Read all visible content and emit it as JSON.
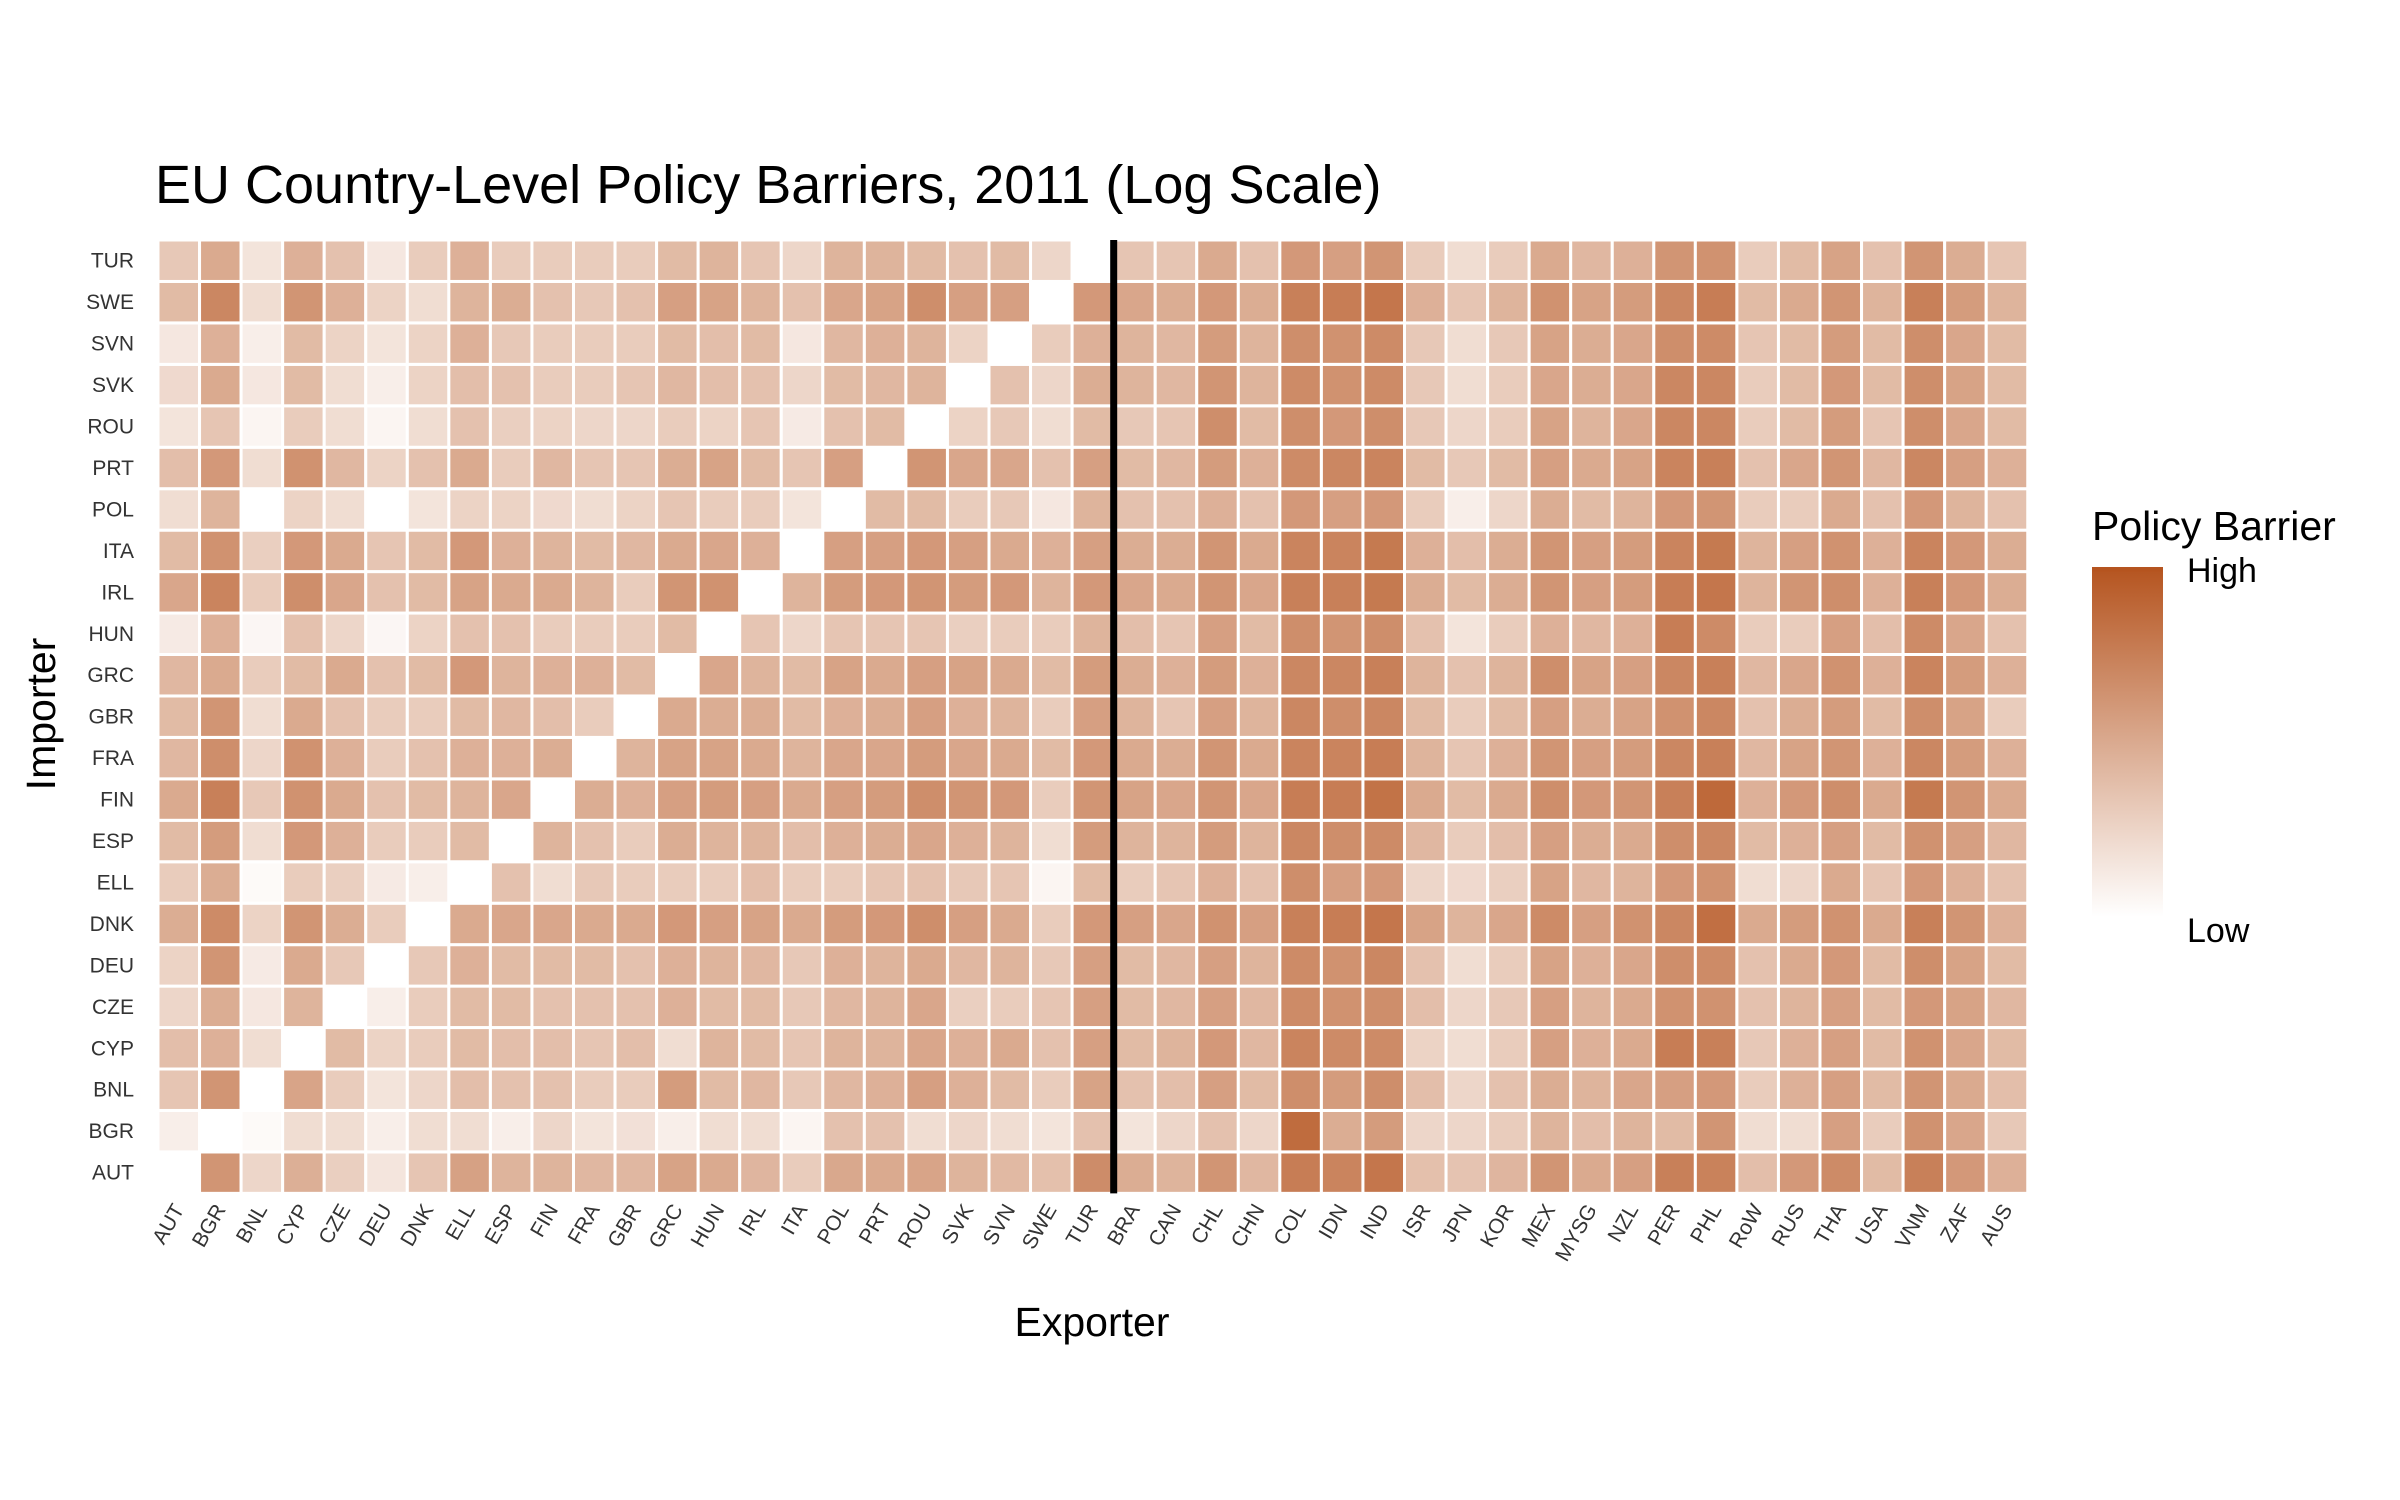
{
  "chart_data": {
    "type": "heatmap",
    "title": "EU Country-Level Policy Barriers, 2011 (Log Scale)",
    "xlabel": "Exporter",
    "ylabel": "Importer",
    "x_categories": [
      "AUT",
      "BGR",
      "BNL",
      "CYP",
      "CZE",
      "DEU",
      "DNK",
      "ELL",
      "ESP",
      "FIN",
      "FRA",
      "GBR",
      "GRC",
      "HUN",
      "IRL",
      "ITA",
      "POL",
      "PRT",
      "ROU",
      "SVK",
      "SVN",
      "SWE",
      "TUR",
      "BRA",
      "CAN",
      "CHL",
      "CHN",
      "COL",
      "IDN",
      "IND",
      "ISR",
      "JPN",
      "KOR",
      "MEX",
      "MYSG",
      "NZL",
      "PER",
      "PHL",
      "RoW",
      "RUS",
      "THA",
      "USA",
      "VNM",
      "ZAF",
      "AUS"
    ],
    "y_categories": [
      "AUT",
      "BGR",
      "BNL",
      "CYP",
      "CZE",
      "DEU",
      "DNK",
      "ELL",
      "ESP",
      "FIN",
      "FRA",
      "GBR",
      "GRC",
      "HUN",
      "IRL",
      "ITA",
      "POL",
      "PRT",
      "ROU",
      "SVK",
      "SVN",
      "SWE",
      "TUR"
    ],
    "value_scale": "relative 0 (Low) to 1 (High), log scale",
    "values": [
      [
        null,
        0.62,
        0.24,
        0.47,
        0.28,
        0.15,
        0.34,
        0.55,
        0.44,
        0.44,
        0.42,
        0.42,
        0.54,
        0.5,
        0.43,
        0.3,
        0.51,
        0.5,
        0.53,
        0.44,
        0.41,
        0.37,
        0.67,
        0.48,
        0.44,
        0.62,
        0.42,
        0.76,
        0.72,
        0.8,
        0.37,
        0.35,
        0.43,
        0.62,
        0.5,
        0.56,
        0.74,
        0.73,
        0.38,
        0.6,
        0.68,
        0.4,
        0.74,
        0.6,
        0.46
      ],
      [
        0.1,
        null,
        0.03,
        0.2,
        0.2,
        0.1,
        0.2,
        0.2,
        0.1,
        0.24,
        0.16,
        0.18,
        0.1,
        0.2,
        0.2,
        0.06,
        0.36,
        0.36,
        0.2,
        0.24,
        0.2,
        0.16,
        0.36,
        0.16,
        0.24,
        0.36,
        0.24,
        0.86,
        0.48,
        0.58,
        0.24,
        0.24,
        0.3,
        0.44,
        0.38,
        0.44,
        0.4,
        0.62,
        0.2,
        0.2,
        0.56,
        0.3,
        0.64,
        0.52,
        0.32
      ],
      [
        0.34,
        0.62,
        null,
        0.53,
        0.3,
        0.16,
        0.24,
        0.38,
        0.36,
        0.36,
        0.3,
        0.3,
        0.58,
        0.4,
        0.42,
        0.32,
        0.42,
        0.46,
        0.56,
        0.46,
        0.4,
        0.3,
        0.54,
        0.36,
        0.38,
        0.56,
        0.4,
        0.66,
        0.58,
        0.66,
        0.38,
        0.24,
        0.36,
        0.48,
        0.44,
        0.52,
        0.56,
        0.6,
        0.3,
        0.46,
        0.56,
        0.4,
        0.62,
        0.5,
        0.38
      ],
      [
        0.38,
        0.46,
        0.2,
        null,
        0.4,
        0.26,
        0.3,
        0.4,
        0.38,
        0.38,
        0.34,
        0.38,
        0.2,
        0.44,
        0.4,
        0.34,
        0.44,
        0.44,
        0.52,
        0.46,
        0.5,
        0.36,
        0.56,
        0.4,
        0.44,
        0.6,
        0.42,
        0.72,
        0.68,
        0.68,
        0.26,
        0.2,
        0.3,
        0.56,
        0.46,
        0.5,
        0.76,
        0.74,
        0.32,
        0.46,
        0.56,
        0.4,
        0.64,
        0.52,
        0.4
      ],
      [
        0.24,
        0.48,
        0.14,
        0.44,
        null,
        0.1,
        0.3,
        0.4,
        0.4,
        0.36,
        0.36,
        0.36,
        0.46,
        0.4,
        0.4,
        0.32,
        0.42,
        0.44,
        0.52,
        0.28,
        0.3,
        0.34,
        0.56,
        0.4,
        0.42,
        0.56,
        0.42,
        0.68,
        0.64,
        0.66,
        0.38,
        0.24,
        0.32,
        0.56,
        0.44,
        0.5,
        0.64,
        0.64,
        0.36,
        0.44,
        0.56,
        0.4,
        0.6,
        0.54,
        0.42
      ],
      [
        0.26,
        0.62,
        0.12,
        0.5,
        0.32,
        null,
        0.32,
        0.46,
        0.4,
        0.4,
        0.4,
        0.36,
        0.46,
        0.44,
        0.42,
        0.32,
        0.46,
        0.44,
        0.5,
        0.42,
        0.44,
        0.32,
        0.56,
        0.4,
        0.42,
        0.56,
        0.44,
        0.68,
        0.64,
        0.7,
        0.36,
        0.2,
        0.3,
        0.54,
        0.46,
        0.52,
        0.66,
        0.68,
        0.36,
        0.5,
        0.6,
        0.4,
        0.66,
        0.54,
        0.4
      ],
      [
        0.48,
        0.68,
        0.26,
        0.62,
        0.48,
        0.3,
        null,
        0.5,
        0.52,
        0.52,
        0.5,
        0.5,
        0.6,
        0.56,
        0.54,
        0.5,
        0.58,
        0.6,
        0.66,
        0.56,
        0.5,
        0.3,
        0.6,
        0.56,
        0.52,
        0.64,
        0.56,
        0.74,
        0.76,
        0.8,
        0.54,
        0.44,
        0.52,
        0.68,
        0.56,
        0.64,
        0.7,
        0.84,
        0.5,
        0.58,
        0.64,
        0.5,
        0.74,
        0.62,
        0.46
      ],
      [
        0.3,
        0.48,
        0.03,
        0.3,
        0.28,
        0.12,
        0.1,
        null,
        0.36,
        0.2,
        0.32,
        0.3,
        0.3,
        0.3,
        0.38,
        0.3,
        0.3,
        0.34,
        0.36,
        0.32,
        0.34,
        0.06,
        0.4,
        0.3,
        0.34,
        0.46,
        0.36,
        0.66,
        0.56,
        0.6,
        0.24,
        0.22,
        0.28,
        0.54,
        0.42,
        0.44,
        0.6,
        0.64,
        0.2,
        0.24,
        0.5,
        0.34,
        0.6,
        0.46,
        0.36
      ],
      [
        0.4,
        0.58,
        0.2,
        0.6,
        0.46,
        0.3,
        0.3,
        0.4,
        null,
        0.44,
        0.36,
        0.3,
        0.48,
        0.44,
        0.44,
        0.38,
        0.46,
        0.48,
        0.52,
        0.46,
        0.44,
        0.2,
        0.58,
        0.44,
        0.44,
        0.58,
        0.44,
        0.7,
        0.66,
        0.68,
        0.42,
        0.3,
        0.38,
        0.56,
        0.48,
        0.5,
        0.66,
        0.7,
        0.4,
        0.46,
        0.56,
        0.4,
        0.64,
        0.56,
        0.42
      ],
      [
        0.5,
        0.74,
        0.32,
        0.64,
        0.5,
        0.36,
        0.4,
        0.44,
        0.52,
        null,
        0.48,
        0.46,
        0.56,
        0.58,
        0.56,
        0.5,
        0.56,
        0.58,
        0.66,
        0.62,
        0.6,
        0.3,
        0.62,
        0.54,
        0.52,
        0.62,
        0.52,
        0.76,
        0.76,
        0.82,
        0.5,
        0.4,
        0.5,
        0.66,
        0.6,
        0.62,
        0.74,
        0.88,
        0.46,
        0.6,
        0.66,
        0.5,
        0.78,
        0.62,
        0.5
      ],
      [
        0.42,
        0.66,
        0.24,
        0.64,
        0.46,
        0.3,
        0.36,
        0.46,
        0.46,
        0.48,
        null,
        0.44,
        0.54,
        0.54,
        0.5,
        0.44,
        0.52,
        0.52,
        0.58,
        0.52,
        0.5,
        0.4,
        0.6,
        0.5,
        0.48,
        0.62,
        0.5,
        0.72,
        0.72,
        0.76,
        0.44,
        0.34,
        0.46,
        0.62,
        0.56,
        0.58,
        0.7,
        0.74,
        0.42,
        0.54,
        0.62,
        0.46,
        0.7,
        0.58,
        0.46
      ],
      [
        0.4,
        0.62,
        0.2,
        0.5,
        0.36,
        0.3,
        0.3,
        0.4,
        0.42,
        0.38,
        0.3,
        null,
        0.5,
        0.48,
        0.48,
        0.4,
        0.46,
        0.48,
        0.56,
        0.46,
        0.44,
        0.3,
        0.56,
        0.44,
        0.34,
        0.56,
        0.44,
        0.7,
        0.66,
        0.7,
        0.4,
        0.3,
        0.4,
        0.56,
        0.48,
        0.54,
        0.64,
        0.7,
        0.36,
        0.48,
        0.58,
        0.4,
        0.66,
        0.54,
        0.3
      ],
      [
        0.42,
        0.5,
        0.3,
        0.4,
        0.5,
        0.36,
        0.4,
        0.6,
        0.44,
        0.46,
        0.46,
        0.4,
        null,
        0.52,
        0.44,
        0.4,
        0.54,
        0.5,
        0.56,
        0.54,
        0.5,
        0.4,
        0.58,
        0.48,
        0.46,
        0.58,
        0.46,
        0.7,
        0.7,
        0.74,
        0.44,
        0.36,
        0.44,
        0.66,
        0.54,
        0.56,
        0.7,
        0.74,
        0.42,
        0.52,
        0.64,
        0.46,
        0.72,
        0.58,
        0.46
      ],
      [
        0.12,
        0.46,
        0.05,
        0.36,
        0.24,
        0.05,
        0.26,
        0.36,
        0.36,
        0.3,
        0.3,
        0.3,
        0.4,
        null,
        0.34,
        0.24,
        0.34,
        0.34,
        0.34,
        0.28,
        0.3,
        0.3,
        0.44,
        0.38,
        0.34,
        0.56,
        0.4,
        0.66,
        0.62,
        0.66,
        0.36,
        0.16,
        0.3,
        0.46,
        0.42,
        0.46,
        0.76,
        0.68,
        0.3,
        0.3,
        0.56,
        0.38,
        0.68,
        0.52,
        0.36
      ],
      [
        0.52,
        0.72,
        0.3,
        0.66,
        0.52,
        0.36,
        0.4,
        0.54,
        0.5,
        0.5,
        0.44,
        0.3,
        0.62,
        0.64,
        null,
        0.44,
        0.58,
        0.6,
        0.62,
        0.58,
        0.6,
        0.44,
        0.6,
        0.52,
        0.5,
        0.62,
        0.52,
        0.74,
        0.74,
        0.78,
        0.48,
        0.4,
        0.48,
        0.62,
        0.56,
        0.58,
        0.76,
        0.8,
        0.44,
        0.62,
        0.66,
        0.46,
        0.74,
        0.6,
        0.48
      ],
      [
        0.4,
        0.64,
        0.28,
        0.6,
        0.5,
        0.34,
        0.4,
        0.6,
        0.46,
        0.44,
        0.4,
        0.42,
        0.5,
        0.52,
        0.46,
        null,
        0.56,
        0.56,
        0.6,
        0.56,
        0.5,
        0.46,
        0.56,
        0.48,
        0.48,
        0.62,
        0.5,
        0.72,
        0.72,
        0.78,
        0.46,
        0.38,
        0.48,
        0.62,
        0.56,
        0.58,
        0.72,
        0.78,
        0.44,
        0.56,
        0.64,
        0.46,
        0.72,
        0.6,
        0.48
      ],
      [
        0.2,
        0.44,
        null,
        0.26,
        0.2,
        null,
        0.16,
        0.26,
        0.26,
        0.22,
        0.2,
        0.26,
        0.34,
        0.3,
        0.3,
        0.16,
        null,
        0.4,
        0.4,
        0.3,
        0.32,
        0.14,
        0.44,
        0.36,
        0.36,
        0.46,
        0.36,
        0.6,
        0.56,
        0.6,
        0.3,
        0.1,
        0.24,
        0.48,
        0.4,
        0.44,
        0.6,
        0.62,
        0.3,
        0.3,
        0.5,
        0.36,
        0.6,
        0.44,
        0.36
      ],
      [
        0.38,
        0.6,
        0.2,
        0.64,
        0.42,
        0.26,
        0.36,
        0.5,
        0.3,
        0.42,
        0.34,
        0.34,
        0.48,
        0.54,
        0.4,
        0.34,
        0.56,
        null,
        0.62,
        0.52,
        0.52,
        0.36,
        0.56,
        0.4,
        0.42,
        0.58,
        0.46,
        0.68,
        0.7,
        0.72,
        0.4,
        0.32,
        0.4,
        0.56,
        0.5,
        0.54,
        0.72,
        0.74,
        0.36,
        0.52,
        0.62,
        0.42,
        0.7,
        0.56,
        0.46
      ],
      [
        0.16,
        0.34,
        0.06,
        0.3,
        0.2,
        0.06,
        0.2,
        0.36,
        0.28,
        0.26,
        0.24,
        0.24,
        0.3,
        0.26,
        0.34,
        0.12,
        0.36,
        0.4,
        null,
        0.26,
        0.32,
        0.2,
        0.4,
        0.32,
        0.34,
        0.66,
        0.4,
        0.66,
        0.6,
        0.66,
        0.32,
        0.24,
        0.3,
        0.54,
        0.44,
        0.52,
        0.7,
        0.7,
        0.3,
        0.4,
        0.58,
        0.34,
        0.66,
        0.52,
        0.4
      ],
      [
        0.22,
        0.5,
        0.14,
        0.4,
        0.2,
        0.1,
        0.26,
        0.38,
        0.36,
        0.3,
        0.3,
        0.34,
        0.42,
        0.38,
        0.36,
        0.24,
        0.4,
        0.42,
        0.44,
        null,
        0.36,
        0.24,
        0.48,
        0.44,
        0.42,
        0.62,
        0.44,
        0.68,
        0.64,
        0.68,
        0.32,
        0.2,
        0.3,
        0.52,
        0.48,
        0.52,
        0.7,
        0.7,
        0.3,
        0.4,
        0.6,
        0.4,
        0.66,
        0.54,
        0.4
      ],
      [
        0.14,
        0.46,
        0.1,
        0.4,
        0.26,
        0.16,
        0.26,
        0.46,
        0.32,
        0.3,
        0.3,
        0.3,
        0.4,
        0.38,
        0.4,
        0.14,
        0.42,
        0.46,
        0.44,
        0.26,
        null,
        0.3,
        0.46,
        0.44,
        0.42,
        0.58,
        0.44,
        0.66,
        0.64,
        0.68,
        0.32,
        0.2,
        0.32,
        0.54,
        0.48,
        0.52,
        0.66,
        0.68,
        0.34,
        0.4,
        0.58,
        0.4,
        0.66,
        0.52,
        0.4
      ],
      [
        0.4,
        0.7,
        0.2,
        0.62,
        0.46,
        0.26,
        0.2,
        0.44,
        0.48,
        0.36,
        0.32,
        0.36,
        0.56,
        0.54,
        0.44,
        0.36,
        0.52,
        0.54,
        0.66,
        0.56,
        0.56,
        null,
        0.6,
        0.52,
        0.48,
        0.6,
        0.48,
        0.74,
        0.76,
        0.8,
        0.46,
        0.34,
        0.44,
        0.64,
        0.54,
        0.58,
        0.7,
        0.76,
        0.4,
        0.5,
        0.62,
        0.44,
        0.74,
        0.58,
        0.44
      ],
      [
        0.32,
        0.5,
        0.16,
        0.46,
        0.36,
        0.14,
        0.3,
        0.46,
        0.3,
        0.3,
        0.3,
        0.3,
        0.4,
        0.44,
        0.34,
        0.24,
        0.44,
        0.44,
        0.4,
        0.36,
        0.4,
        0.24,
        null,
        0.34,
        0.34,
        0.5,
        0.36,
        0.6,
        0.56,
        0.62,
        0.3,
        0.2,
        0.3,
        0.5,
        0.42,
        0.46,
        0.62,
        0.64,
        0.3,
        0.4,
        0.54,
        0.36,
        0.62,
        0.48,
        0.34
      ]
    ],
    "divider_after_x": "TUR",
    "legend": {
      "title": "Policy Barrier",
      "high_label": "High",
      "low_label": "Low",
      "placement": "right"
    },
    "colors": {
      "low": "#ffffff",
      "high": "#b5541f",
      "divider": "#000000",
      "tile_border": "#ffffff"
    }
  }
}
